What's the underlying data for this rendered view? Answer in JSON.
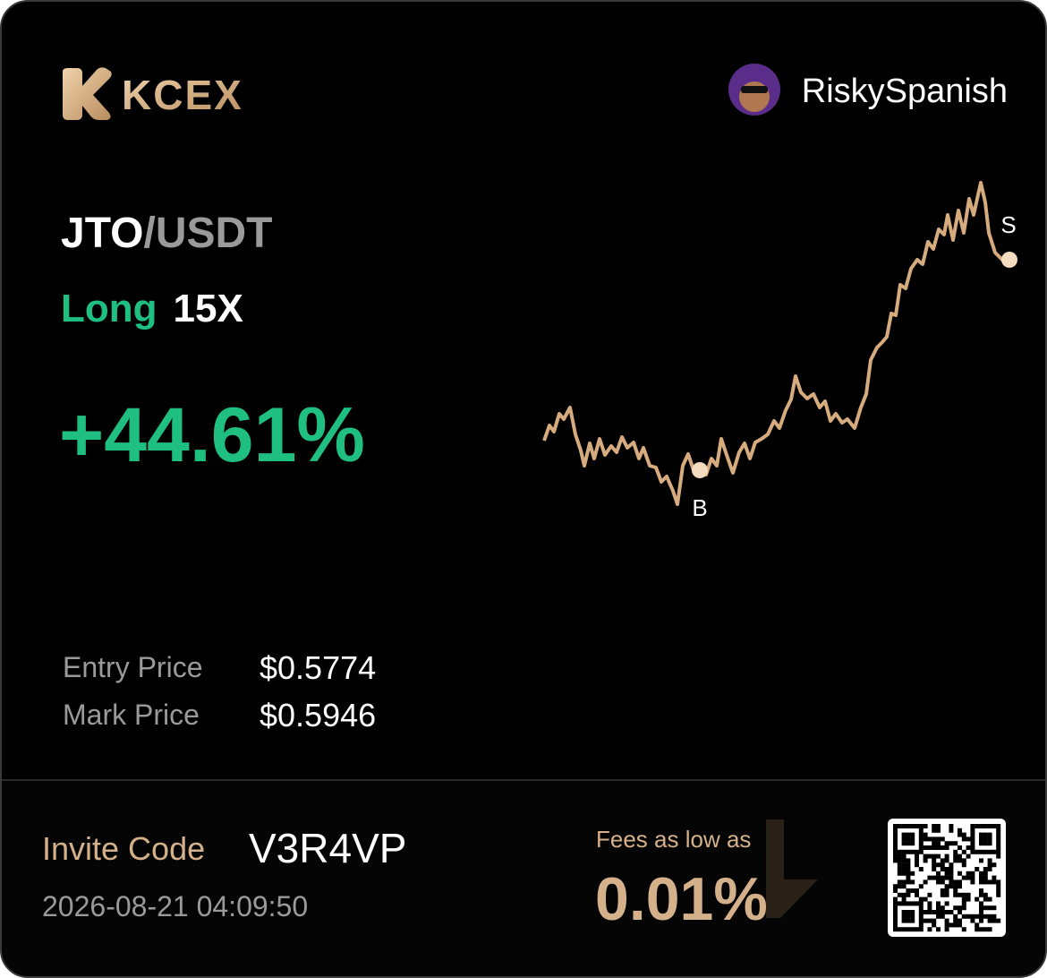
{
  "header": {
    "brand": "KCEX",
    "username": "RiskySpanish"
  },
  "position": {
    "base": "JTO",
    "quote": "/USDT",
    "side": "Long",
    "leverage": "15X",
    "pnl": "+44.61%"
  },
  "chart_markers": {
    "buy": "B",
    "sell": "S"
  },
  "prices": {
    "rows": [
      [
        "Entry Price",
        "$0.5774"
      ],
      [
        "Mark Price",
        "$0.5946"
      ]
    ]
  },
  "footer": {
    "invite_label": "Invite Code",
    "invite_code": "V3R4VP",
    "timestamp": "2026-08-21 04:09:50",
    "fees_label": "Fees as low as",
    "fees_value": "0.01%"
  }
}
